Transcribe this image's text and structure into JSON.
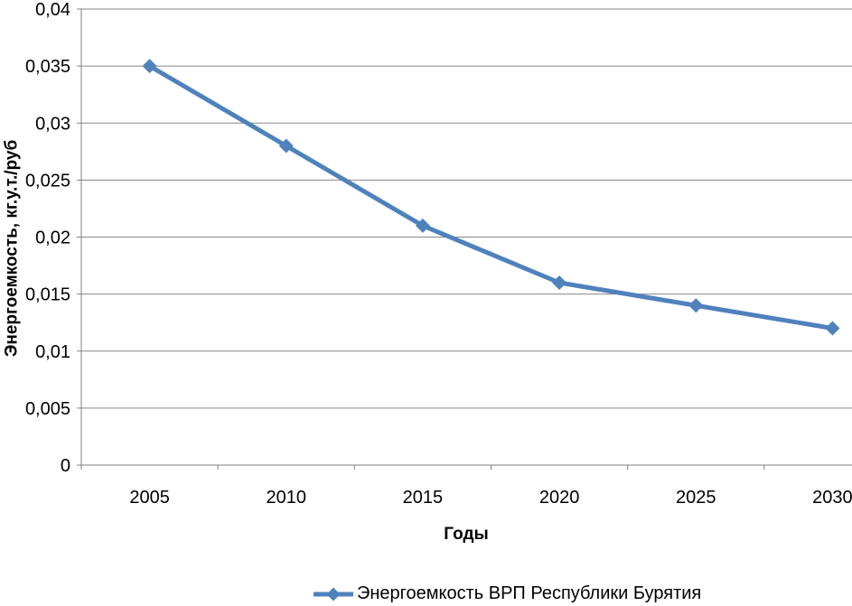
{
  "chart_data": {
    "type": "line",
    "title": "",
    "categories": [
      "2005",
      "2010",
      "2015",
      "2020",
      "2025",
      "2030"
    ],
    "series": [
      {
        "name": "Энергоемкость ВРП Республики Бурятия",
        "values": [
          0.035,
          0.028,
          0.021,
          0.016,
          0.014,
          0.012
        ]
      }
    ],
    "xlabel": "Годы",
    "ylabel": "Энергоемкость, кг.у.т./руб",
    "ylim": [
      0,
      0.04
    ],
    "y_tick_step": 0.005,
    "y_tick_labels": [
      "0",
      "0,005",
      "0,01",
      "0,015",
      "0,02",
      "0,025",
      "0,03",
      "0,035",
      "0,04"
    ],
    "grid": true,
    "marker": "diamond",
    "legend_position": "bottom",
    "colors": {
      "series": "#4F81BD",
      "gridline": "#878787",
      "axis": "#808080",
      "text": "#000000",
      "background": "#FFFFFF"
    }
  }
}
